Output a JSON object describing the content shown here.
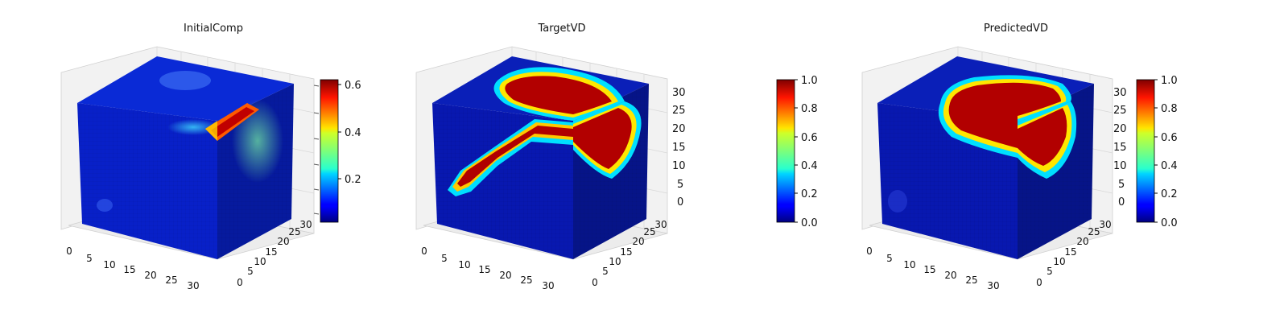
{
  "chart_data": [
    {
      "type": "heatmap",
      "subtype": "3d-voxel-cube",
      "title": "InitialComp",
      "colormap": "jet",
      "x_ticks": [
        "0",
        "5",
        "10",
        "15",
        "20",
        "25",
        "30"
      ],
      "y_ticks": [
        "0",
        "5",
        "10",
        "15",
        "20",
        "25",
        "30"
      ],
      "z_ticks": [],
      "xlim": [
        0,
        32
      ],
      "ylim": [
        0,
        32
      ],
      "zlim": [
        0,
        32
      ],
      "colorbar": {
        "min": 0.02,
        "max": 0.62,
        "ticks": [
          "0.2",
          "0.4",
          "0.6"
        ],
        "tick_values": [
          0.2,
          0.4,
          0.6
        ]
      },
      "features": "low values overall (~0.05) with a bright streak near the top-right edge (~0.6) and a faint cyan halo on the right face"
    },
    {
      "type": "heatmap",
      "subtype": "3d-voxel-cube",
      "title": "TargetVD",
      "colormap": "jet",
      "x_ticks": [
        "0",
        "5",
        "10",
        "15",
        "20",
        "25",
        "30"
      ],
      "y_ticks": [
        "0",
        "5",
        "10",
        "15",
        "20",
        "25",
        "30"
      ],
      "z_ticks": [
        "0",
        "5",
        "10",
        "15",
        "20",
        "25",
        "30"
      ],
      "xlim": [
        0,
        32
      ],
      "ylim": [
        0,
        32
      ],
      "zlim": [
        0,
        32
      ],
      "colorbar": {
        "min": 0.0,
        "max": 1.0,
        "ticks": [
          "0.0",
          "0.2",
          "0.4",
          "0.6",
          "0.8",
          "1.0"
        ],
        "tick_values": [
          0,
          0.2,
          0.4,
          0.6,
          0.8,
          1.0
        ]
      },
      "features": "large high-density region (1.0) at the top with a diagonal arm extending to the lower left on the front face"
    },
    {
      "type": "heatmap",
      "subtype": "3d-voxel-cube",
      "title": "PredictedVD",
      "colormap": "jet",
      "x_ticks": [
        "0",
        "5",
        "10",
        "15",
        "20",
        "25",
        "30"
      ],
      "y_ticks": [
        "0",
        "5",
        "10",
        "15",
        "20",
        "25",
        "30"
      ],
      "z_ticks": [
        "0",
        "5",
        "10",
        "15",
        "20",
        "25",
        "30"
      ],
      "xlim": [
        0,
        32
      ],
      "ylim": [
        0,
        32
      ],
      "zlim": [
        0,
        32
      ],
      "colorbar": {
        "min": 0.0,
        "max": 1.0,
        "ticks": [
          "0.0",
          "0.2",
          "0.4",
          "0.6",
          "0.8",
          "1.0"
        ],
        "tick_values": [
          0,
          0.2,
          0.4,
          0.6,
          0.8,
          1.0
        ]
      },
      "features": "high-density bell shaped region (1.0) in the upper part, no diagonal arm"
    }
  ]
}
